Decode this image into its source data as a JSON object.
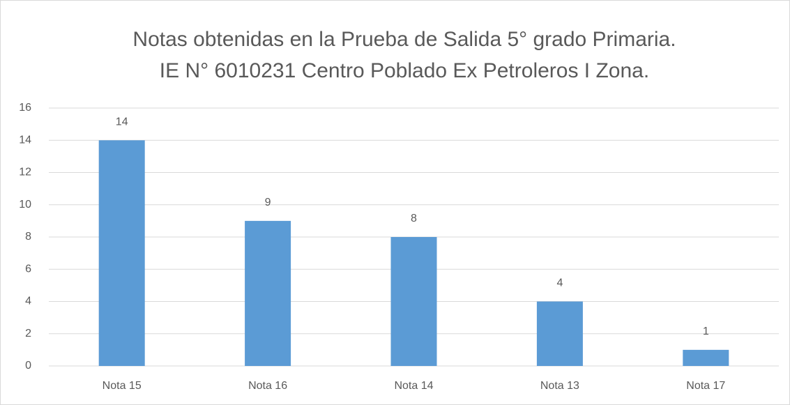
{
  "chart_data": {
    "type": "bar",
    "title": [
      "Notas obtenidas en la Prueba de Salida 5° grado Primaria.",
      "IE N° 6010231 Centro Poblado Ex Petroleros I Zona."
    ],
    "categories": [
      "Nota 15",
      "Nota 16",
      "Nota 14",
      "Nota 13",
      "Nota 17"
    ],
    "values": [
      14,
      9,
      8,
      4,
      1
    ],
    "color": "#5b9bd5",
    "ylim": [
      0,
      16
    ],
    "yticks": [
      0,
      2,
      4,
      6,
      8,
      10,
      12,
      14,
      16
    ],
    "grid": true
  }
}
